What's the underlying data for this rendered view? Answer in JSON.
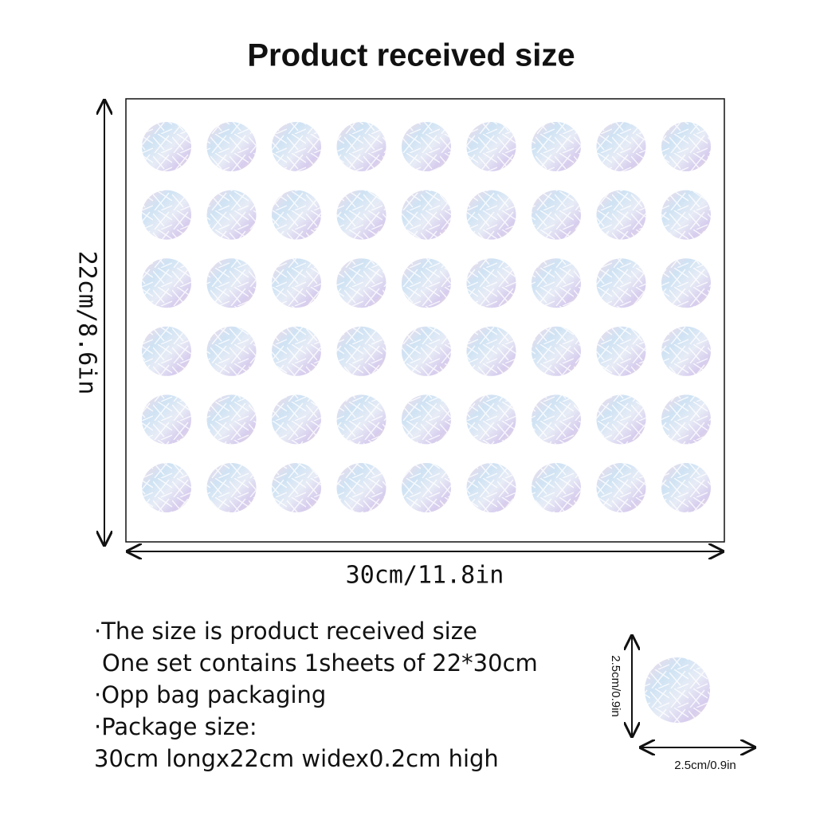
{
  "title": "Product received size",
  "sheet": {
    "height_label": "22cm/8.6in",
    "width_label": "30cm/11.8in"
  },
  "notes": [
    "·The size is product received size",
    "One set contains 1sheets of 22*30cm",
    "·Opp bag packaging",
    "·Package size:",
    "30cm longx22cm widex0.2cm high"
  ],
  "sticker": {
    "height_label": "2.5cm/0.9in",
    "width_label": "2.5cm/0.9in"
  }
}
